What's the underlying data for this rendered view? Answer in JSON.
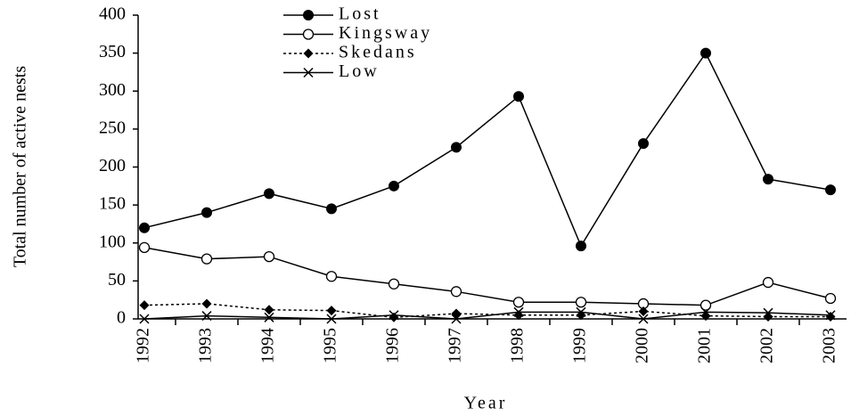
{
  "chart_data": {
    "type": "line",
    "y_label": "Total number of active nests",
    "x_label": "Year",
    "categories": [
      "1992",
      "1993",
      "1994",
      "1995",
      "1996",
      "1997",
      "1998",
      "1999",
      "2000",
      "2001",
      "2002",
      "2003"
    ],
    "series": [
      {
        "name": "Lost",
        "color": "#000000",
        "marker": "filled-circle",
        "dashed": false,
        "values": [
          120,
          140,
          165,
          145,
          175,
          226,
          293,
          96,
          231,
          350,
          184,
          170
        ]
      },
      {
        "name": "Kingsway",
        "color": "#000000",
        "marker": "open-circle",
        "dashed": false,
        "values": [
          94,
          79,
          82,
          56,
          46,
          36,
          22,
          22,
          20,
          18,
          48,
          27
        ]
      },
      {
        "name": "Skedans",
        "color": "#000000",
        "marker": "diamond",
        "dashed": true,
        "values": [
          18,
          20,
          12,
          11,
          2,
          7,
          5,
          5,
          10,
          4,
          3,
          3
        ]
      },
      {
        "name": "Low",
        "color": "#000000",
        "marker": "cross",
        "dashed": false,
        "values": [
          0,
          4,
          2,
          0,
          5,
          0,
          9,
          9,
          0,
          9,
          8,
          5
        ]
      }
    ],
    "ylim": [
      0,
      400
    ],
    "yticks": [
      0,
      50,
      100,
      150,
      200,
      250,
      300,
      350,
      400
    ],
    "grid": false
  }
}
